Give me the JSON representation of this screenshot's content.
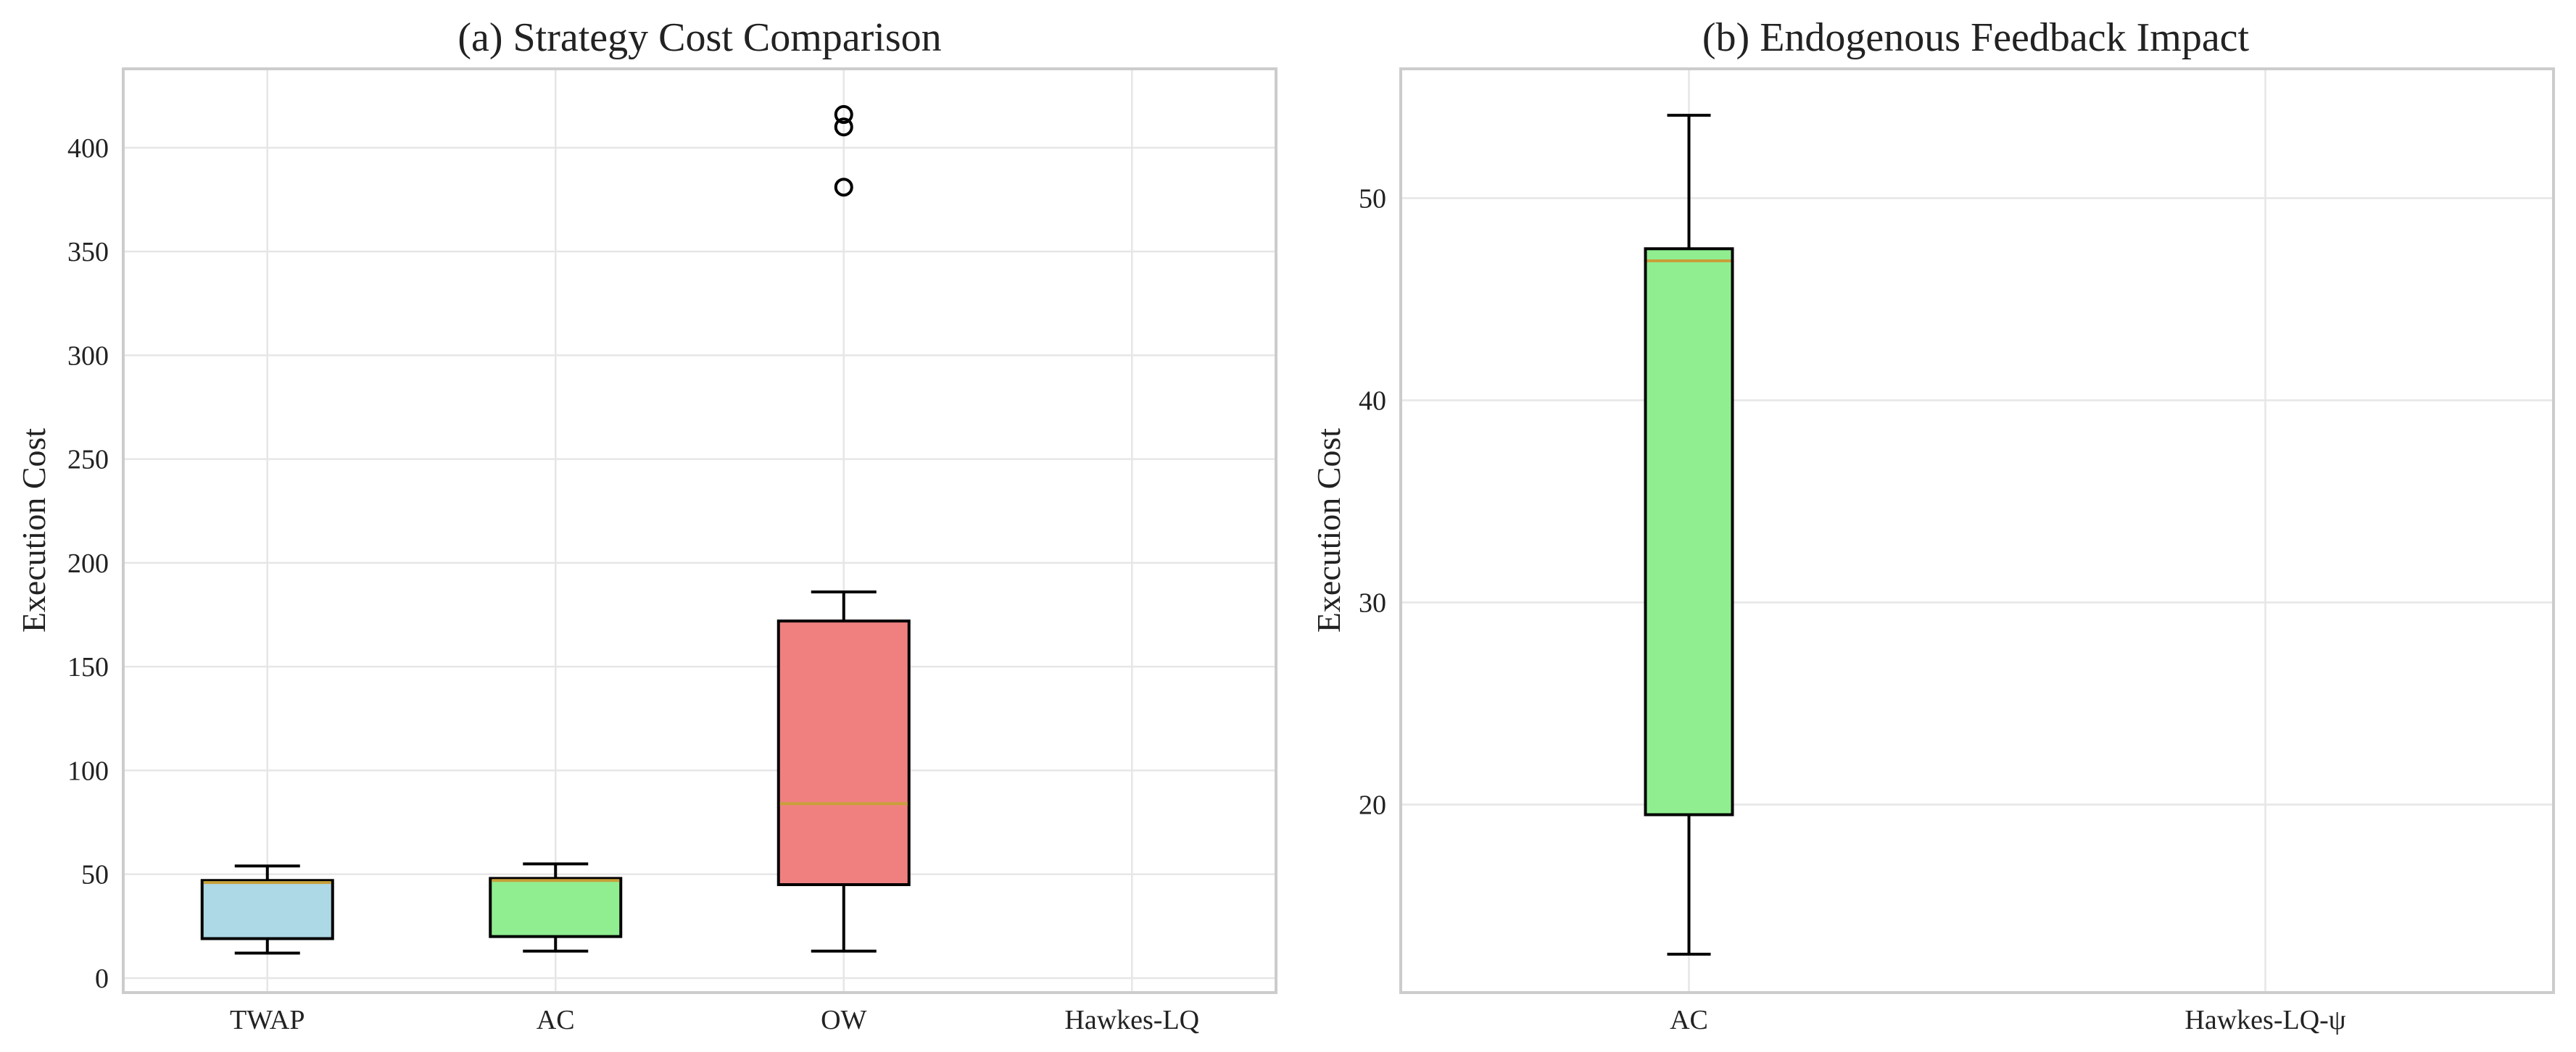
{
  "chart_data": [
    {
      "type": "box",
      "title": "(a) Strategy Cost Comparison",
      "xlabel": "",
      "ylabel": "Execution Cost",
      "ylim": [
        -7,
        438
      ],
      "yticks": [
        0,
        50,
        100,
        150,
        200,
        250,
        300,
        350,
        400
      ],
      "grid": true,
      "categories": [
        "TWAP",
        "AC",
        "OW",
        "Hawkes-LQ"
      ],
      "boxes": [
        {
          "category": "TWAP",
          "whisker_low": 12,
          "q1": 19,
          "median": 46,
          "q3": 47,
          "whisker_high": 54,
          "outliers": [],
          "color": "#add8e6"
        },
        {
          "category": "AC",
          "whisker_low": 13,
          "q1": 20,
          "median": 47,
          "q3": 48,
          "whisker_high": 55,
          "outliers": [],
          "color": "#90ee90"
        },
        {
          "category": "OW",
          "whisker_low": 13,
          "q1": 45,
          "median": 84,
          "q3": 172,
          "whisker_high": 186,
          "outliers": [
            381,
            410,
            416
          ],
          "color": "#f08080"
        },
        {
          "category": "Hawkes-LQ",
          "whisker_low": null,
          "q1": null,
          "median": null,
          "q3": null,
          "whisker_high": null,
          "outliers": [],
          "color": "#ffffff"
        }
      ]
    },
    {
      "type": "box",
      "title": "(b) Endogenous Feedback Impact",
      "xlabel": "",
      "ylabel": "Execution Cost",
      "ylim": [
        10.7,
        56.4
      ],
      "yticks": [
        20,
        30,
        40,
        50
      ],
      "grid": true,
      "categories": [
        "AC",
        "Hawkes-LQ-ψ"
      ],
      "boxes": [
        {
          "category": "AC",
          "whisker_low": 12.6,
          "q1": 19.5,
          "median": 46.9,
          "q3": 47.5,
          "whisker_high": 54.1,
          "outliers": [],
          "color": "#90ee90"
        },
        {
          "category": "Hawkes-LQ-ψ",
          "whisker_low": null,
          "q1": null,
          "median": null,
          "q3": null,
          "whisker_high": null,
          "outliers": [],
          "color": "#ffffff"
        }
      ]
    }
  ],
  "colors": {
    "median_line": "#c8a03a",
    "box_edge": "#000000",
    "grid": "#e6e6e6",
    "axes_edge": "#cccccc"
  }
}
